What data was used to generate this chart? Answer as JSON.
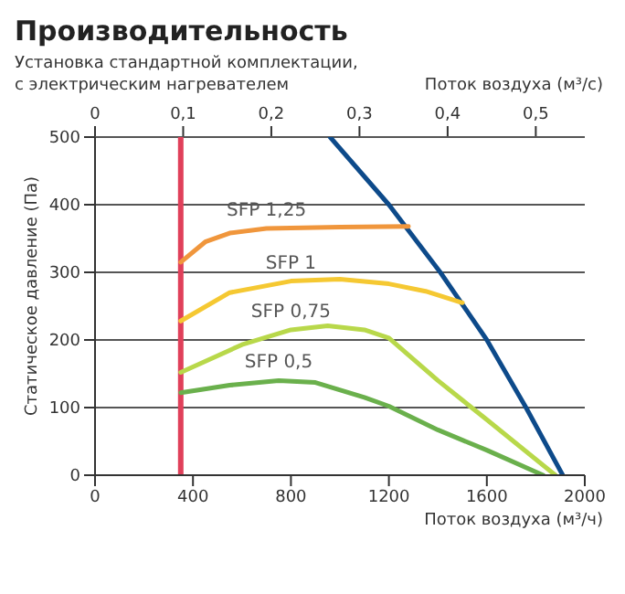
{
  "chart_data": {
    "type": "line",
    "title": "Производительность",
    "subtitle": "Установка стандартной комплектации,\nс электрическим нагревателем",
    "xlabel": "Поток воздуха (м³/ч)",
    "x2label": "Поток воздуха (м³/с)",
    "ylabel": "Статическое давление (Па)",
    "xlim": [
      0,
      2000
    ],
    "xticks": [
      0,
      400,
      800,
      1200,
      1600,
      2000
    ],
    "ylim": [
      0,
      500
    ],
    "yticks": [
      0,
      100,
      200,
      300,
      400,
      500
    ],
    "x2lim": [
      0,
      0.5556
    ],
    "x2ticks": [
      0,
      {
        "value": 0.1,
        "label": "0,1"
      },
      {
        "value": 0.2,
        "label": "0,2"
      },
      {
        "value": 0.3,
        "label": "0,3"
      },
      {
        "value": 0.4,
        "label": "0,4"
      },
      {
        "value": 0.5,
        "label": "0,5"
      }
    ],
    "grid": true,
    "legend": false,
    "marker": "none",
    "line_style": "solid",
    "series": [
      {
        "color": "#e0405a",
        "x": [
          350,
          350
        ],
        "values": [
          0,
          500
        ]
      },
      {
        "color": "#0d4a8a",
        "x": [
          960,
          1200,
          1410,
          1600,
          1760,
          1910
        ],
        "values": [
          500,
          400,
          300,
          200,
          100,
          0
        ]
      },
      {
        "name": "SFP 1,25",
        "color": "#f0963c",
        "x": [
          350,
          450,
          550,
          700,
          1000,
          1280
        ],
        "values": [
          315,
          345,
          358,
          365,
          367,
          368
        ]
      },
      {
        "name": "SFP 1",
        "color": "#f5c832",
        "x": [
          350,
          550,
          800,
          1000,
          1200,
          1350,
          1500
        ],
        "values": [
          228,
          270,
          287,
          290,
          283,
          272,
          255
        ]
      },
      {
        "name": "SFP 0,75",
        "color": "#b8d84a",
        "x": [
          350,
          600,
          800,
          950,
          1100,
          1200,
          1400,
          1600,
          1880
        ],
        "values": [
          152,
          193,
          215,
          221,
          215,
          203,
          140,
          82,
          0
        ]
      },
      {
        "name": "SFP 0,5",
        "color": "#6ab04c",
        "x": [
          350,
          550,
          750,
          900,
          1100,
          1200,
          1400,
          1600,
          1830
        ],
        "values": [
          122,
          133,
          140,
          137,
          115,
          102,
          67,
          37,
          0
        ]
      }
    ]
  }
}
